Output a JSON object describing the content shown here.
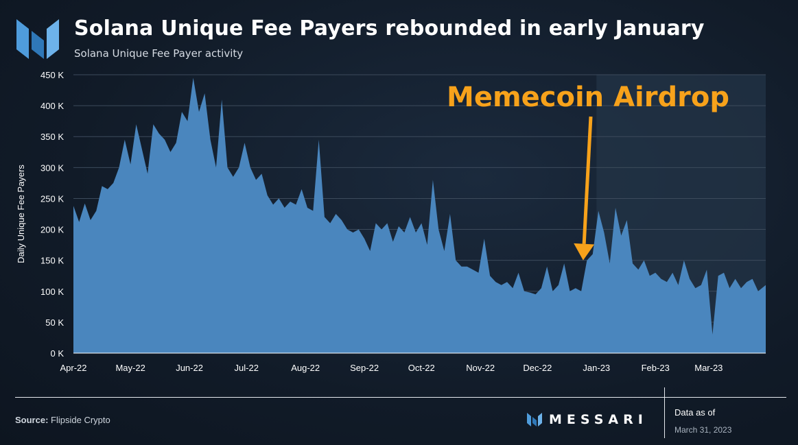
{
  "header": {
    "title": "Solana Unique Fee Payers rebounded in early January",
    "subtitle": "Solana Unique Fee Payer activity",
    "logo_icon": "messari-m-logo-icon"
  },
  "footer": {
    "source_label": "Source:",
    "source_name": "Flipside Crypto",
    "brand": "MESSARI",
    "data_as_of_label": "Data as of",
    "data_as_of_date": "March 31, 2023"
  },
  "colors": {
    "area": "#4a86be",
    "highlight": "#233447",
    "annotation": "#f7a21b",
    "grid": "#3d4b5c"
  },
  "chart_data": {
    "type": "area",
    "title": "Solana Unique Fee Payers rebounded in early January",
    "subtitle": "Solana Unique Fee Payer activity",
    "ylabel": "Daily Unique Fee Payers",
    "xlabel": "",
    "ylim": [
      0,
      450000
    ],
    "yticks": [
      0,
      50000,
      100000,
      150000,
      200000,
      250000,
      300000,
      350000,
      400000,
      450000
    ],
    "ytick_labels": [
      "0 K",
      "50 K",
      "100 K",
      "150 K",
      "200 K",
      "250 K",
      "300 K",
      "350 K",
      "400 K",
      "450 K"
    ],
    "xlim": [
      "2022-04-01",
      "2023-03-31"
    ],
    "xtick_dates": [
      "2022-04-01",
      "2022-05-01",
      "2022-06-01",
      "2022-07-01",
      "2022-08-01",
      "2022-09-01",
      "2022-10-01",
      "2022-11-01",
      "2022-12-01",
      "2023-01-01",
      "2023-02-01",
      "2023-03-01"
    ],
    "xtick_labels": [
      "Apr-22",
      "May-22",
      "Jun-22",
      "Jul-22",
      "Aug-22",
      "Sep-22",
      "Oct-22",
      "Nov-22",
      "Dec-22",
      "Jan-23",
      "Feb-23",
      "Mar-23"
    ],
    "grid": true,
    "legend": "none",
    "highlight_range": [
      "2023-01-01",
      "2023-03-31"
    ],
    "annotation": {
      "text": "Memecoin Airdrop",
      "arrow_to": [
        "2022-12-25",
        150000
      ]
    },
    "series": [
      {
        "x": [
          "2022-04-01",
          "2022-04-04",
          "2022-04-07",
          "2022-04-10",
          "2022-04-13",
          "2022-04-16",
          "2022-04-19",
          "2022-04-22",
          "2022-04-25",
          "2022-04-28",
          "2022-05-01",
          "2022-05-04",
          "2022-05-07",
          "2022-05-10",
          "2022-05-13",
          "2022-05-16",
          "2022-05-19",
          "2022-05-22",
          "2022-05-25",
          "2022-05-28",
          "2022-05-31",
          "2022-06-03",
          "2022-06-06",
          "2022-06-09",
          "2022-06-12",
          "2022-06-15",
          "2022-06-18",
          "2022-06-21",
          "2022-06-24",
          "2022-06-27",
          "2022-06-30",
          "2022-07-03",
          "2022-07-06",
          "2022-07-09",
          "2022-07-12",
          "2022-07-15",
          "2022-07-18",
          "2022-07-21",
          "2022-07-24",
          "2022-07-27",
          "2022-07-30",
          "2022-08-02",
          "2022-08-05",
          "2022-08-08",
          "2022-08-11",
          "2022-08-14",
          "2022-08-17",
          "2022-08-20",
          "2022-08-23",
          "2022-08-26",
          "2022-08-29",
          "2022-09-01",
          "2022-09-04",
          "2022-09-07",
          "2022-09-10",
          "2022-09-13",
          "2022-09-16",
          "2022-09-19",
          "2022-09-22",
          "2022-09-25",
          "2022-09-28",
          "2022-10-01",
          "2022-10-04",
          "2022-10-07",
          "2022-10-10",
          "2022-10-13",
          "2022-10-16",
          "2022-10-19",
          "2022-10-22",
          "2022-10-25",
          "2022-10-28",
          "2022-10-31",
          "2022-11-03",
          "2022-11-06",
          "2022-11-09",
          "2022-11-12",
          "2022-11-15",
          "2022-11-18",
          "2022-11-21",
          "2022-11-24",
          "2022-11-27",
          "2022-11-30",
          "2022-12-03",
          "2022-12-06",
          "2022-12-09",
          "2022-12-12",
          "2022-12-15",
          "2022-12-18",
          "2022-12-21",
          "2022-12-24",
          "2022-12-27",
          "2022-12-30",
          "2023-01-02",
          "2023-01-05",
          "2023-01-08",
          "2023-01-11",
          "2023-01-14",
          "2023-01-17",
          "2023-01-20",
          "2023-01-23",
          "2023-01-26",
          "2023-01-29",
          "2023-02-01",
          "2023-02-04",
          "2023-02-07",
          "2023-02-10",
          "2023-02-13",
          "2023-02-16",
          "2023-02-19",
          "2023-02-22",
          "2023-02-25",
          "2023-02-28",
          "2023-03-03",
          "2023-03-06",
          "2023-03-09",
          "2023-03-12",
          "2023-03-15",
          "2023-03-18",
          "2023-03-21",
          "2023-03-24",
          "2023-03-27",
          "2023-03-31"
        ],
        "values": [
          238000,
          212000,
          242000,
          215000,
          230000,
          270000,
          265000,
          275000,
          300000,
          345000,
          305000,
          370000,
          330000,
          290000,
          370000,
          355000,
          345000,
          325000,
          340000,
          390000,
          375000,
          445000,
          390000,
          420000,
          345000,
          300000,
          410000,
          300000,
          285000,
          300000,
          340000,
          300000,
          280000,
          290000,
          255000,
          240000,
          250000,
          235000,
          245000,
          240000,
          265000,
          235000,
          230000,
          345000,
          220000,
          210000,
          225000,
          215000,
          200000,
          195000,
          200000,
          185000,
          165000,
          210000,
          200000,
          210000,
          180000,
          205000,
          195000,
          220000,
          195000,
          210000,
          175000,
          280000,
          200000,
          165000,
          225000,
          150000,
          140000,
          140000,
          135000,
          130000,
          185000,
          125000,
          115000,
          110000,
          115000,
          105000,
          130000,
          100000,
          98000,
          95000,
          105000,
          140000,
          100000,
          110000,
          145000,
          100000,
          105000,
          100000,
          150000,
          160000,
          230000,
          195000,
          145000,
          235000,
          190000,
          215000,
          145000,
          135000,
          150000,
          125000,
          130000,
          120000,
          115000,
          130000,
          110000,
          150000,
          120000,
          105000,
          110000,
          135000,
          30000,
          125000,
          130000,
          105000,
          120000,
          105000,
          115000,
          120000,
          100000,
          110000
        ]
      }
    ]
  }
}
